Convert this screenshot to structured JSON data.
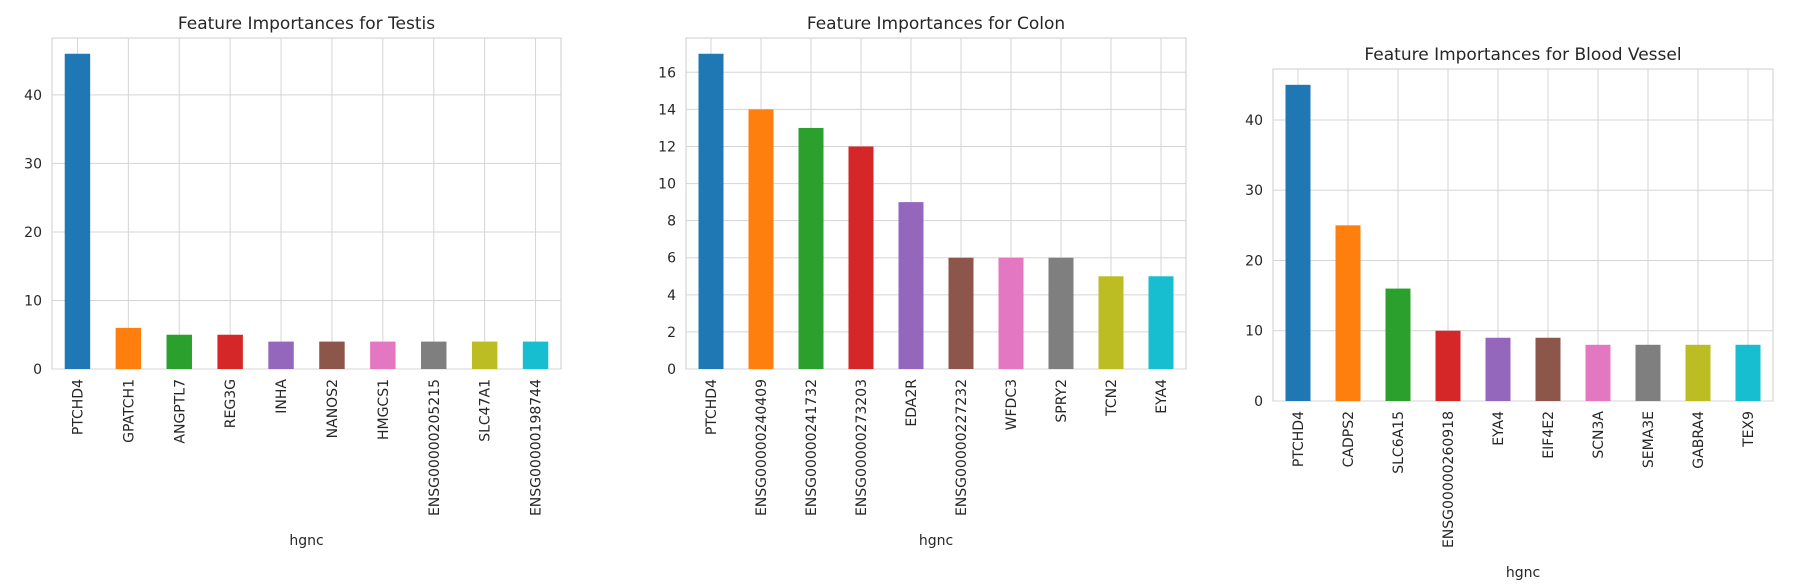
{
  "colors": [
    "#1f77b4",
    "#ff7f0e",
    "#2ca02c",
    "#d62728",
    "#9467bd",
    "#8c564b",
    "#e377c2",
    "#7f7f7f",
    "#bcbd22",
    "#17becf"
  ],
  "chart_data": [
    {
      "type": "bar",
      "title": "Feature Importances for Testis",
      "xlabel": "hgnc",
      "ylabel": "",
      "categories": [
        "PTCHD4",
        "GPATCH1",
        "ANGPTL7",
        "REG3G",
        "INHA",
        "NANOS2",
        "HMGCS1",
        "ENSG00000205215",
        "SLC47A1",
        "ENSG00000198744"
      ],
      "values": [
        46,
        6,
        5,
        5,
        4,
        4,
        4,
        4,
        4,
        4
      ],
      "ylim": [
        0,
        48.3
      ],
      "yticks": [
        0,
        10,
        20,
        30,
        40
      ],
      "grid": true,
      "legend": "none"
    },
    {
      "type": "bar",
      "title": "Feature Importances for Colon",
      "xlabel": "hgnc",
      "ylabel": "",
      "categories": [
        "PTCHD4",
        "ENSG00000240409",
        "ENSG00000241732",
        "ENSG00000273203",
        "EDA2R",
        "ENSG00000227232",
        "WFDC3",
        "SPRY2",
        "TCN2",
        "EYA4"
      ],
      "values": [
        17,
        14,
        13,
        12,
        9,
        6,
        6,
        6,
        5,
        5
      ],
      "ylim": [
        0,
        17.85
      ],
      "yticks": [
        0,
        2,
        4,
        6,
        8,
        10,
        12,
        14,
        16
      ],
      "grid": true,
      "legend": "none"
    },
    {
      "type": "bar",
      "title": "Feature Importances for Blood Vessel",
      "xlabel": "hgnc",
      "ylabel": "",
      "categories": [
        "PTCHD4",
        "CADPS2",
        "SLC6A15",
        "ENSG00000260918",
        "EYA4",
        "EIF4E2",
        "SCN3A",
        "SEMA3E",
        "GABRA4",
        "TEX9"
      ],
      "values": [
        45,
        25,
        16,
        10,
        9,
        9,
        8,
        8,
        8,
        8
      ],
      "ylim": [
        0,
        47.25
      ],
      "yticks": [
        0,
        10,
        20,
        30,
        40
      ],
      "grid": true,
      "legend": "none"
    }
  ]
}
